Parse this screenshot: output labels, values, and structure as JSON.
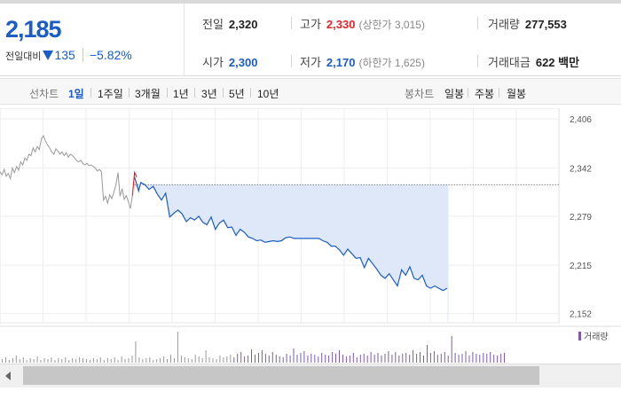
{
  "quote": {
    "price": "2,185",
    "change_label": "전일대비",
    "change": "135",
    "change_pct": "−5.82%",
    "direction": "down",
    "prev_close": {
      "label": "전일",
      "value": "2,320"
    },
    "high": {
      "label": "고가",
      "value": "2,330",
      "limit_label": "(상한가 3,015)"
    },
    "volume": {
      "label": "거래량",
      "value": "277,553"
    },
    "open": {
      "label": "시가",
      "value": "2,300"
    },
    "low": {
      "label": "저가",
      "value": "2,170",
      "limit_label": "(하한가 1,625)"
    },
    "trade_value": {
      "label": "거래대금",
      "value": "622 백만"
    }
  },
  "tabs": {
    "line_label": "선차트",
    "line_periods": [
      "1일",
      "1주일",
      "3개월",
      "1년",
      "3년",
      "5년",
      "10년"
    ],
    "active": "1일",
    "candle_label": "봉차트",
    "candle_periods": [
      "일봉",
      "주봉",
      "월봉"
    ]
  },
  "chart_data": {
    "type": "line",
    "ylim": [
      2140,
      2420
    ],
    "yticks": [
      2406,
      2342,
      2279,
      2215,
      2152
    ],
    "y_tick_labels": [
      "2,406",
      "2,342",
      "2,279",
      "2,215",
      "2,152"
    ],
    "prev_close": 2320,
    "prev_day_x": [
      0,
      1,
      2,
      3,
      4,
      5,
      6,
      7,
      8,
      9,
      10,
      11,
      12,
      13,
      14,
      15,
      16,
      17,
      18,
      19,
      20,
      21,
      22,
      23,
      24,
      25,
      26,
      27,
      28,
      29,
      30,
      31,
      32,
      33,
      34,
      35,
      36,
      37,
      38,
      39,
      40,
      41,
      42,
      43,
      44,
      45,
      46,
      47,
      48,
      49,
      50,
      51,
      52,
      53,
      54,
      55,
      56,
      57,
      58,
      59,
      60,
      61,
      62,
      63,
      64
    ],
    "prev_day_values": [
      2337,
      2333,
      2340,
      2331,
      2335,
      2328,
      2342,
      2336,
      2344,
      2339,
      2350,
      2346,
      2355,
      2352,
      2360,
      2358,
      2368,
      2363,
      2370,
      2366,
      2380,
      2384,
      2377,
      2372,
      2368,
      2363,
      2360,
      2367,
      2364,
      2360,
      2363,
      2358,
      2362,
      2356,
      2360,
      2358,
      2355,
      2352,
      2350,
      2352,
      2348,
      2346,
      2348,
      2345,
      2346,
      2344,
      2342,
      2338,
      2340,
      2337,
      2300,
      2305,
      2296,
      2307,
      2302,
      2310,
      2320,
      2336,
      2305,
      2315,
      2301,
      2306,
      2298,
      2289,
      2306
    ],
    "today_x": [
      65,
      67,
      68,
      70,
      72,
      74,
      76,
      78,
      80,
      82,
      84,
      86,
      88,
      90,
      92,
      94,
      96,
      98,
      100,
      102,
      104,
      106,
      108,
      110,
      112,
      114,
      116,
      118,
      120,
      122,
      124,
      126,
      128,
      130,
      132,
      134,
      136,
      138,
      140,
      142,
      144,
      146,
      148,
      150,
      152,
      154,
      156,
      158,
      160,
      162,
      164,
      166,
      168,
      170,
      172,
      174,
      176,
      178,
      180,
      182,
      184,
      186,
      188,
      190,
      192,
      194,
      196,
      198,
      200,
      202,
      204,
      206,
      208,
      210,
      212,
      214,
      216
    ],
    "today_values": [
      2330,
      2312,
      2323,
      2320,
      2314,
      2318,
      2308,
      2300,
      2309,
      2278,
      2283,
      2287,
      2282,
      2272,
      2277,
      2274,
      2279,
      2271,
      2268,
      2278,
      2262,
      2270,
      2274,
      2264,
      2265,
      2254,
      2262,
      2258,
      2252,
      2250,
      2247,
      2248,
      2245,
      2246,
      2247,
      2246,
      2247,
      2251,
      2252,
      2250,
      2250,
      2250,
      2250,
      2250,
      2250,
      2250,
      2247,
      2245,
      2240,
      2240,
      2235,
      2228,
      2236,
      2230,
      2224,
      2225,
      2212,
      2224,
      2217,
      2210,
      2202,
      2198,
      2204,
      2196,
      2188,
      2209,
      2202,
      2213,
      2198,
      2196,
      2202,
      2188,
      2185,
      2188,
      2185,
      2182,
      2185
    ],
    "volume_label": "거래량",
    "volume": [
      4,
      6,
      3,
      5,
      8,
      4,
      6,
      3,
      5,
      4,
      7,
      3,
      5,
      4,
      6,
      3,
      5,
      4,
      6,
      3,
      5,
      4,
      6,
      5,
      4,
      3,
      5,
      4,
      6,
      3,
      5,
      4,
      6,
      3,
      7,
      4,
      5,
      8,
      24,
      6,
      4,
      5,
      6,
      3,
      4,
      5,
      7,
      4,
      9,
      5,
      35,
      8,
      6,
      5,
      4,
      9,
      7,
      5,
      14,
      6,
      5,
      4,
      8,
      6,
      7,
      9,
      6,
      10,
      12,
      7,
      8,
      15,
      9,
      11,
      14,
      10,
      8,
      12,
      9,
      7,
      6,
      10,
      8,
      16,
      9,
      11,
      13,
      8,
      10,
      9,
      7,
      11,
      9,
      8,
      12,
      10,
      14,
      9,
      7,
      8,
      11,
      6,
      9,
      10,
      8,
      12,
      9,
      11,
      8,
      10,
      13,
      9,
      12,
      8,
      10,
      11,
      9,
      14,
      10,
      12,
      8,
      20,
      11,
      13,
      9,
      10,
      12,
      8,
      30,
      11,
      9,
      10,
      13,
      8,
      12,
      10,
      9,
      11,
      10,
      12,
      9,
      8,
      10,
      11
    ],
    "colors": {
      "up": "#e5262b",
      "down": "#1b5dc7",
      "prev": "#999999",
      "volume_bar": "#7b5bb5"
    }
  }
}
